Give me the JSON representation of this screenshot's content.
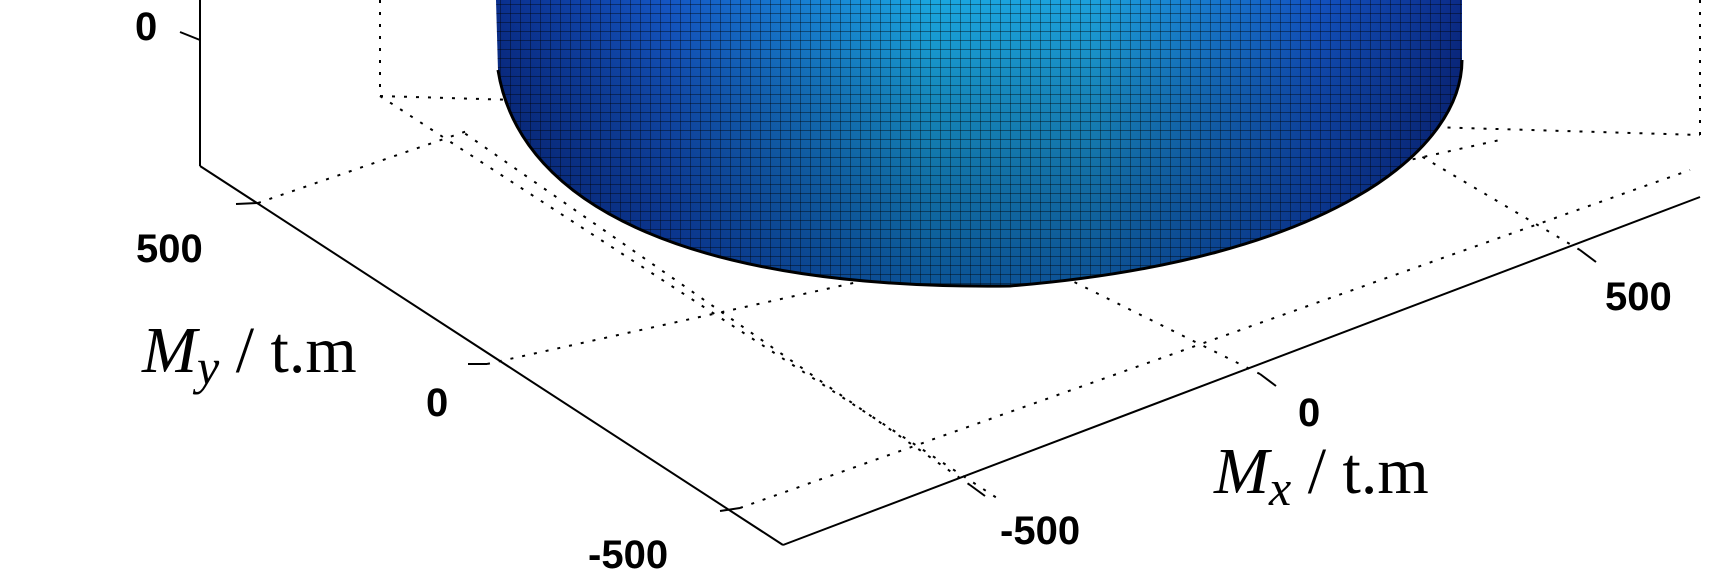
{
  "chart_data": {
    "type": "surface",
    "surface_shape": "cylinder",
    "colormap": "jet",
    "grid": true,
    "radius": 480,
    "x_axis": {
      "label_main": "M",
      "label_sub": "x",
      "label_unit": " / t.m",
      "ticks": [
        -500,
        0,
        500
      ],
      "tick_labels": [
        "-500",
        "0",
        "500"
      ]
    },
    "y_axis": {
      "label_main": "M",
      "label_sub": "y",
      "label_unit": " / t.m",
      "ticks": [
        -500,
        0,
        500
      ],
      "tick_labels": [
        "-500",
        "0",
        "500"
      ]
    },
    "z_axis": {
      "ticks": [
        0
      ],
      "tick_labels": [
        "0"
      ]
    }
  }
}
